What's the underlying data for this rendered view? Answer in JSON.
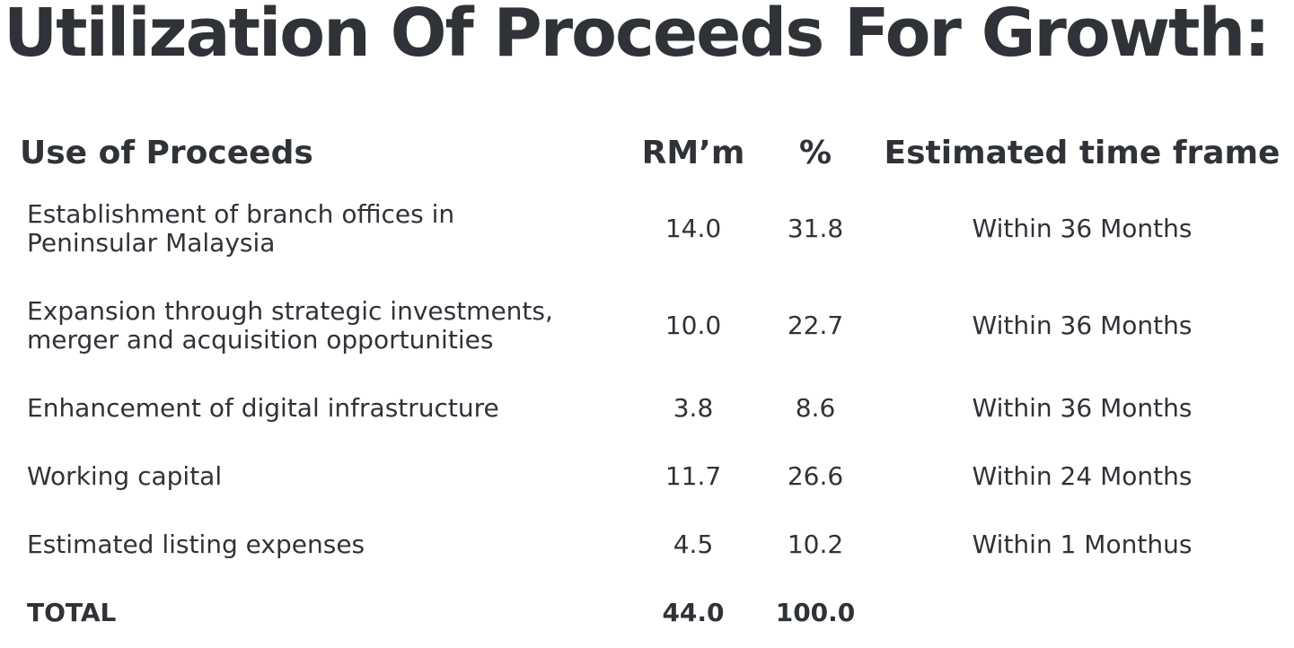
{
  "header": {
    "title": "Utilization Of Proceeds For Growth:"
  },
  "table": {
    "columns": [
      "Use of Proceeds",
      "RM’m",
      "%",
      "Estimated time frame"
    ],
    "rows": [
      {
        "use_lines": [
          "Establishment of branch offices in",
          "Peninsular Malaysia"
        ],
        "rm": "14.0",
        "pct": "31.8",
        "time": "Within 36 Months"
      },
      {
        "use_lines": [
          "Expansion through strategic investments,",
          "merger and acquisition opportunities"
        ],
        "rm": "10.0",
        "pct": "22.7",
        "time": "Within 36 Months"
      },
      {
        "use_lines": [
          "Enhancement of digital infrastructure"
        ],
        "rm": "3.8",
        "pct": "8.6",
        "time": "Within 36 Months"
      },
      {
        "use_lines": [
          "Working capital"
        ],
        "rm": "11.7",
        "pct": "26.6",
        "time": "Within 24 Months"
      },
      {
        "use_lines": [
          "Estimated listing expenses"
        ],
        "rm": "4.5",
        "pct": "10.2",
        "time": "Within 1 Monthus"
      }
    ],
    "total": {
      "label": "TOTAL",
      "rm": "44.0",
      "pct": "100.0"
    }
  }
}
